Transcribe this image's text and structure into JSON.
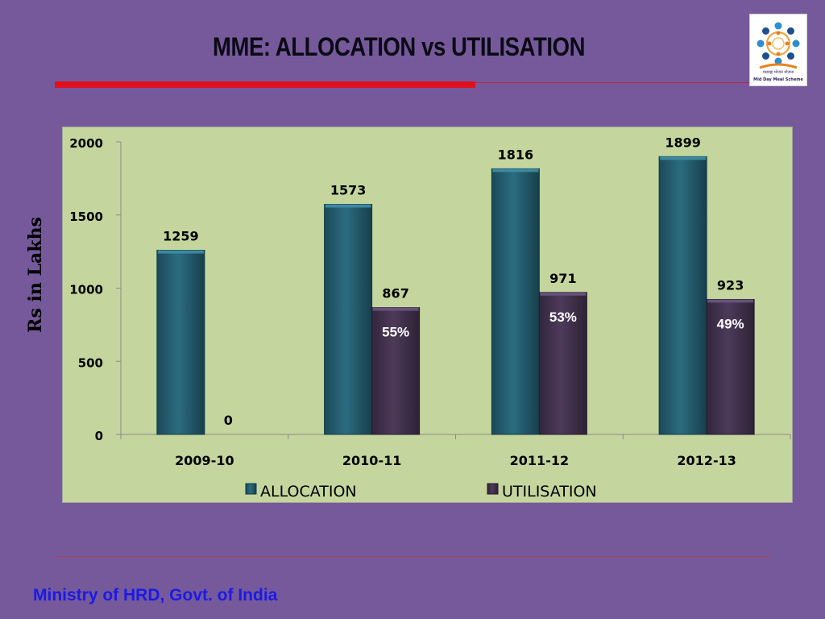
{
  "slide": {
    "title": "MME: ALLOCATION vs UTILISATION",
    "footer": "Ministry of HRD, Govt. of India"
  },
  "logo": {
    "name": "mid-day-meal-logo",
    "hindi_caption": "मध्याह्न भोजन योजना",
    "english_caption": "Mid Day Meal Scheme"
  },
  "colors": {
    "background": "#76599b",
    "plot_area": "#c4d69d",
    "allocation": "#245e70",
    "utilisation": "#44334f",
    "accent_red": "#e0101f",
    "footer_text": "#1a1ae6"
  },
  "chart_data": {
    "type": "bar",
    "title": "MME: ALLOCATION vs UTILISATION",
    "xlabel": "",
    "ylabel": "Rs in Lakhs",
    "ylim": [
      0,
      2000
    ],
    "yticks": [
      0,
      500,
      1000,
      1500,
      2000
    ],
    "grid": false,
    "legend_position": "bottom",
    "categories": [
      "2009-10",
      "2010-11",
      "2011-12",
      "2012-13"
    ],
    "series": [
      {
        "name": "ALLOCATION",
        "values": [
          1259,
          1573,
          1816,
          1899
        ],
        "color": "#245e70"
      },
      {
        "name": "UTILISATION",
        "values": [
          0,
          867,
          971,
          923
        ],
        "color": "#44334f"
      }
    ],
    "annotations": [
      {
        "category": "2010-11",
        "series": "UTILISATION",
        "text": "55%"
      },
      {
        "category": "2011-12",
        "series": "UTILISATION",
        "text": "53%"
      },
      {
        "category": "2012-13",
        "series": "UTILISATION",
        "text": "49%"
      }
    ]
  }
}
